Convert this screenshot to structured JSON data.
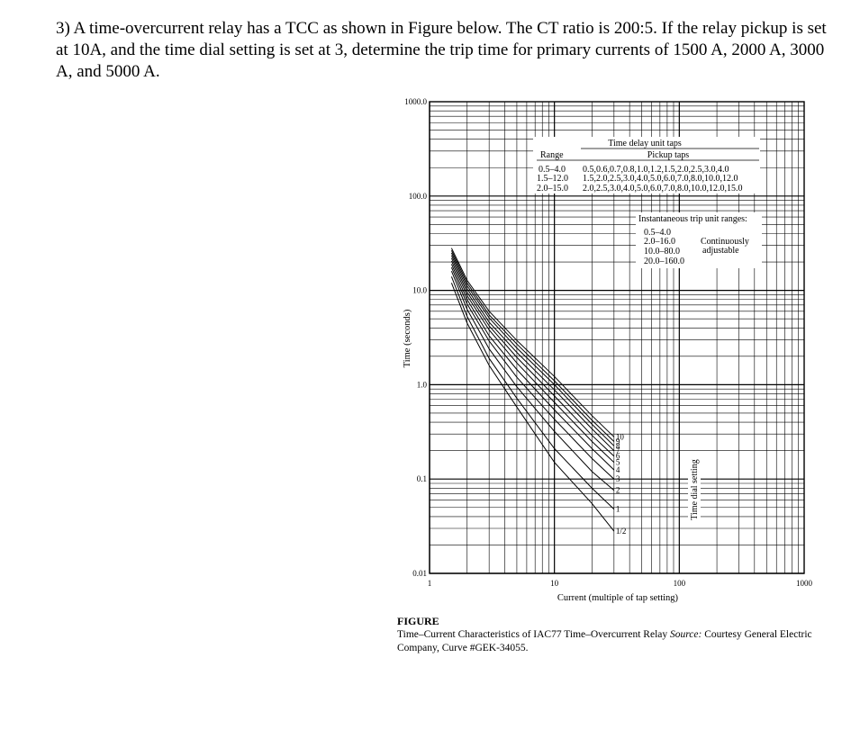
{
  "problem_text": "3) A time-overcurrent relay has a TCC as shown in Figure below. The CT ratio is 200:5. If the relay pickup is set at 10A, and the time dial setting is set at 3, determine the trip time for primary currents of 1500 A, 2000 A, 3000 A, and 5000 A.",
  "chart_data": {
    "type": "line",
    "x_scale": "log",
    "y_scale": "log",
    "xlim": [
      1,
      1000
    ],
    "ylim": [
      0.01,
      1000
    ],
    "grid": true,
    "xlabel": "Current (multiple of tap setting)",
    "ylabel": "Time (seconds)",
    "x_ticks": [
      "1",
      "10",
      "100",
      "1000"
    ],
    "y_ticks": [
      "1000.0",
      "100.0",
      "10.0",
      "1.0",
      "0.1",
      "0.01"
    ],
    "series": [
      {
        "name": "1/2",
        "x": [
          1.5,
          2,
          3,
          5,
          10,
          20,
          30
        ],
        "y": [
          12.0,
          4.5,
          1.6,
          0.58,
          0.15,
          0.055,
          0.028
        ]
      },
      {
        "name": "1",
        "x": [
          1.5,
          2,
          3,
          5,
          10,
          20,
          30
        ],
        "y": [
          14.0,
          5.3,
          1.9,
          0.72,
          0.21,
          0.08,
          0.048
        ]
      },
      {
        "name": "2",
        "x": [
          1.5,
          2,
          3,
          5,
          10,
          20,
          30
        ],
        "y": [
          16.0,
          6.3,
          2.4,
          0.95,
          0.32,
          0.12,
          0.076
        ]
      },
      {
        "name": "3",
        "x": [
          1.5,
          2,
          3,
          5,
          10,
          20,
          30
        ],
        "y": [
          17.5,
          7.2,
          2.9,
          1.2,
          0.43,
          0.165,
          0.1
        ]
      },
      {
        "name": "4",
        "x": [
          1.5,
          2,
          3,
          5,
          10,
          20,
          30
        ],
        "y": [
          19.0,
          8.0,
          3.3,
          1.45,
          0.54,
          0.21,
          0.125
        ]
      },
      {
        "name": "5",
        "x": [
          1.5,
          2,
          3,
          5,
          10,
          20,
          30
        ],
        "y": [
          20.5,
          8.8,
          3.8,
          1.7,
          0.65,
          0.25,
          0.15
        ]
      },
      {
        "name": "6",
        "x": [
          1.5,
          2,
          3,
          5,
          10,
          20,
          30
        ],
        "y": [
          22.0,
          9.6,
          4.2,
          1.95,
          0.76,
          0.29,
          0.175
        ]
      },
      {
        "name": "7",
        "x": [
          1.5,
          2,
          3,
          5,
          10,
          20,
          30
        ],
        "y": [
          23.5,
          10.4,
          4.6,
          2.2,
          0.88,
          0.34,
          0.2
        ]
      },
      {
        "name": "8",
        "x": [
          1.5,
          2,
          3,
          5,
          10,
          20,
          30
        ],
        "y": [
          25.0,
          11.2,
          5.1,
          2.45,
          1.0,
          0.38,
          0.225
        ]
      },
      {
        "name": "9",
        "x": [
          1.5,
          2,
          3,
          5,
          10,
          20,
          30
        ],
        "y": [
          26.5,
          12.0,
          5.5,
          2.7,
          1.1,
          0.42,
          0.25
        ]
      },
      {
        "name": "10",
        "x": [
          1.5,
          2,
          3,
          5,
          10,
          20,
          30
        ],
        "y": [
          28.0,
          12.8,
          6.0,
          2.95,
          1.22,
          0.47,
          0.28
        ]
      }
    ],
    "dial_axis_label": "Time dial setting",
    "annotations": {
      "time_delay_title": "Time delay unit taps",
      "range_header": "Range",
      "pickup_header": "Pickup taps",
      "time_delay_rows": [
        {
          "range": "0.5–4.0",
          "taps": "0.5,0.6,0.7,0.8,1.0,1.2,1.5,2.0,2.5,3.0,4.0"
        },
        {
          "range": "1.5–12.0",
          "taps": "1.5,2.0,2.5,3.0,4.0,5.0,6.0,7.0,8.0,10.0,12.0"
        },
        {
          "range": "2.0–15.0",
          "taps": "2.0,2.5,3.0,4.0,5.0,6.0,7.0,8.0,10.0,12.0,15.0"
        }
      ],
      "instantaneous_title": "Instantaneous trip unit ranges:",
      "instantaneous_ranges": [
        "0.5–4.0",
        "2.0–16.0",
        "10.0–80.0",
        "20.0–160.0"
      ],
      "adjustable_note": [
        "Continuously",
        "adjustable"
      ]
    }
  },
  "caption": {
    "heading": "FIGURE",
    "text_before_source": "Time–Current Characteristics of IAC77 Time–Overcurrent Relay ",
    "source_label": "Source:",
    "text_after_source": " Courtesy General Electric Company, Curve #GEK-34055."
  }
}
